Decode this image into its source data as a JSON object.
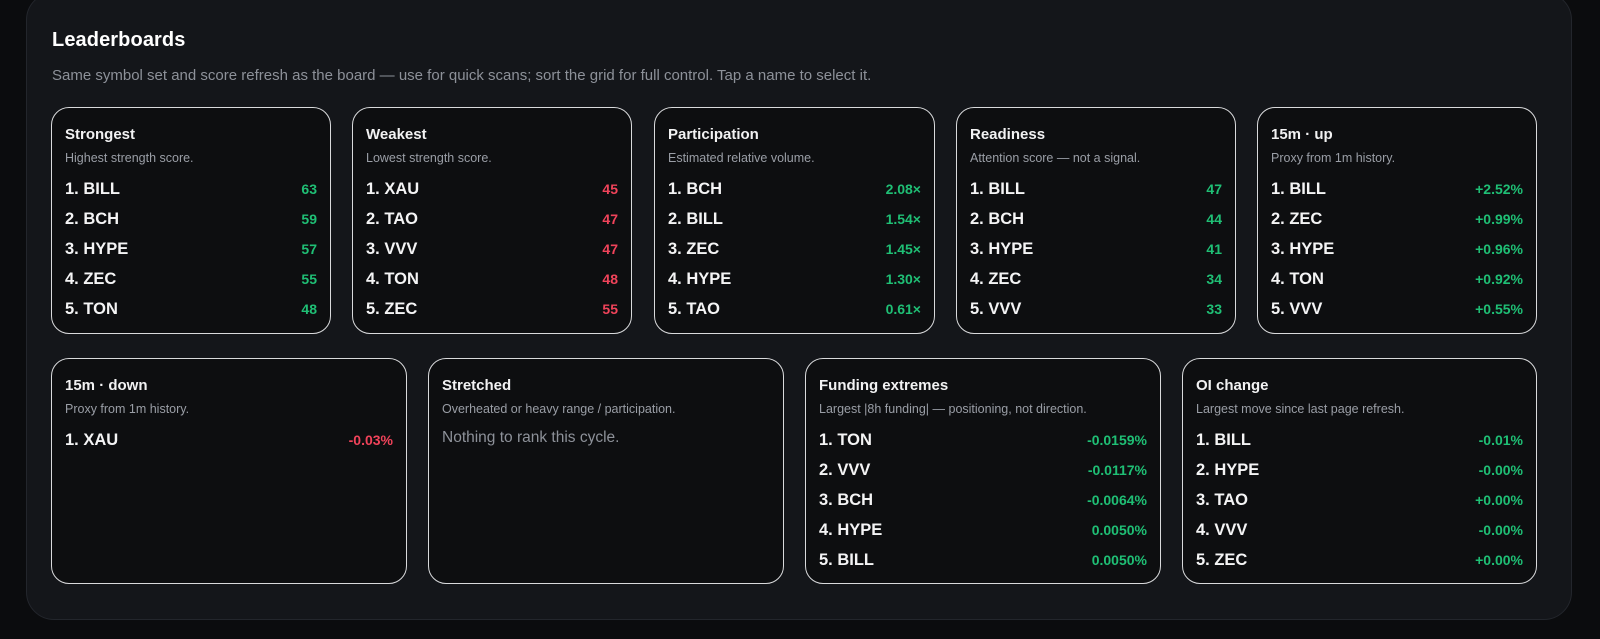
{
  "header": {
    "title": "Leaderboards",
    "subtitle": "Same symbol set and score refresh as the board — use for quick scans; sort the grid for full control. Tap a name to select it."
  },
  "colors": {
    "positive": "#1fbf75",
    "negative": "#f0435a"
  },
  "cards": [
    {
      "title": "Strongest",
      "desc": "Highest strength score.",
      "rows": [
        {
          "name": "1. BILL",
          "value": "63",
          "tone": "pos"
        },
        {
          "name": "2. BCH",
          "value": "59",
          "tone": "pos"
        },
        {
          "name": "3. HYPE",
          "value": "57",
          "tone": "pos"
        },
        {
          "name": "4. ZEC",
          "value": "55",
          "tone": "pos"
        },
        {
          "name": "5. TON",
          "value": "48",
          "tone": "pos"
        }
      ]
    },
    {
      "title": "Weakest",
      "desc": "Lowest strength score.",
      "rows": [
        {
          "name": "1. XAU",
          "value": "45",
          "tone": "neg"
        },
        {
          "name": "2. TAO",
          "value": "47",
          "tone": "neg"
        },
        {
          "name": "3. VVV",
          "value": "47",
          "tone": "neg"
        },
        {
          "name": "4. TON",
          "value": "48",
          "tone": "neg"
        },
        {
          "name": "5. ZEC",
          "value": "55",
          "tone": "neg"
        }
      ]
    },
    {
      "title": "Participation",
      "desc": "Estimated relative volume.",
      "rows": [
        {
          "name": "1. BCH",
          "value": "2.08×",
          "tone": "pos"
        },
        {
          "name": "2. BILL",
          "value": "1.54×",
          "tone": "pos"
        },
        {
          "name": "3. ZEC",
          "value": "1.45×",
          "tone": "pos"
        },
        {
          "name": "4. HYPE",
          "value": "1.30×",
          "tone": "pos"
        },
        {
          "name": "5. TAO",
          "value": "0.61×",
          "tone": "pos"
        }
      ]
    },
    {
      "title": "Readiness",
      "desc": "Attention score — not a signal.",
      "rows": [
        {
          "name": "1. BILL",
          "value": "47",
          "tone": "pos"
        },
        {
          "name": "2. BCH",
          "value": "44",
          "tone": "pos"
        },
        {
          "name": "3. HYPE",
          "value": "41",
          "tone": "pos"
        },
        {
          "name": "4. ZEC",
          "value": "34",
          "tone": "pos"
        },
        {
          "name": "5. VVV",
          "value": "33",
          "tone": "pos"
        }
      ]
    },
    {
      "title": "15m · up",
      "desc": "Proxy from 1m history.",
      "rows": [
        {
          "name": "1. BILL",
          "value": "+2.52%",
          "tone": "pos"
        },
        {
          "name": "2. ZEC",
          "value": "+0.99%",
          "tone": "pos"
        },
        {
          "name": "3. HYPE",
          "value": "+0.96%",
          "tone": "pos"
        },
        {
          "name": "4. TON",
          "value": "+0.92%",
          "tone": "pos"
        },
        {
          "name": "5. VVV",
          "value": "+0.55%",
          "tone": "pos"
        }
      ]
    },
    {
      "title": "15m · down",
      "desc": "Proxy from 1m history.",
      "rows": [
        {
          "name": "1. XAU",
          "value": "-0.03%",
          "tone": "neg"
        }
      ]
    },
    {
      "title": "Stretched",
      "desc": "Overheated or heavy range / participation.",
      "empty": "Nothing to rank this cycle.",
      "rows": []
    },
    {
      "title": "Funding extremes",
      "desc": "Largest |8h funding| — positioning, not direction.",
      "rows": [
        {
          "name": "1. TON",
          "value": "-0.0159%",
          "tone": "pos"
        },
        {
          "name": "2. VVV",
          "value": "-0.0117%",
          "tone": "pos"
        },
        {
          "name": "3. BCH",
          "value": "-0.0064%",
          "tone": "pos"
        },
        {
          "name": "4. HYPE",
          "value": "0.0050%",
          "tone": "pos"
        },
        {
          "name": "5. BILL",
          "value": "0.0050%",
          "tone": "pos"
        }
      ]
    },
    {
      "title": "OI change",
      "desc": "Largest move since last page refresh.",
      "rows": [
        {
          "name": "1. BILL",
          "value": "-0.01%",
          "tone": "pos"
        },
        {
          "name": "2. HYPE",
          "value": "-0.00%",
          "tone": "pos"
        },
        {
          "name": "3. TAO",
          "value": "+0.00%",
          "tone": "pos"
        },
        {
          "name": "4. VVV",
          "value": "-0.00%",
          "tone": "pos"
        },
        {
          "name": "5. ZEC",
          "value": "+0.00%",
          "tone": "pos"
        }
      ]
    }
  ]
}
